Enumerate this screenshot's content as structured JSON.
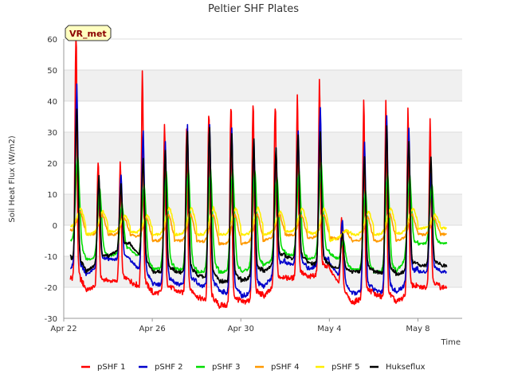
{
  "chart_data": {
    "type": "line",
    "title": "Peltier SHF Plates",
    "xlabel": "Time",
    "ylabel": "Soil Heat Flux (W/m2)",
    "xlim": [
      0,
      18
    ],
    "ylim": [
      -30,
      60
    ],
    "yticks": [
      -30,
      -20,
      -10,
      0,
      10,
      20,
      30,
      40,
      50,
      60
    ],
    "xticks": [
      {
        "day": 0,
        "label": "Apr 22"
      },
      {
        "day": 4,
        "label": "Apr 26"
      },
      {
        "day": 8,
        "label": "Apr 30"
      },
      {
        "day": 12,
        "label": "May 4"
      },
      {
        "day": 16,
        "label": "May 8"
      }
    ],
    "start_day": 0.3,
    "end_day": 17.3,
    "legend_position": "bottom",
    "annotation": "VR_met",
    "series": [
      {
        "name": "pSHF 1",
        "color": "#ff0000",
        "peak_phase": 0.55,
        "width": 0.045,
        "peaks": [
          60,
          20,
          18,
          45,
          29,
          31,
          35,
          38,
          38,
          38,
          38,
          42,
          1,
          36,
          36,
          33,
          30
        ],
        "troughs": [
          -15,
          -21,
          -18,
          -18,
          -22,
          -21,
          -23,
          -26,
          -25,
          -23,
          -17,
          -17,
          -14,
          -25,
          -22,
          -25,
          -20
        ]
      },
      {
        "name": "pSHF 2",
        "color": "#0000cc",
        "peak_phase": 0.58,
        "width": 0.06,
        "peaks": [
          42,
          13,
          15,
          28,
          24,
          29,
          29,
          29,
          25,
          22,
          28,
          35,
          1,
          24,
          32,
          28,
          15
        ],
        "troughs": [
          -12,
          -16,
          -11,
          -11,
          -19,
          -19,
          -19,
          -21,
          -23,
          -20,
          -12,
          -14,
          -12,
          -22,
          -21,
          -22,
          -15
        ]
      },
      {
        "name": "pSHF 3",
        "color": "#00dd00",
        "peak_phase": 0.62,
        "width": 0.09,
        "peaks": [
          21,
          10,
          6,
          12,
          15,
          16,
          16,
          16,
          16,
          14,
          16,
          18,
          -5,
          10,
          15,
          14,
          12
        ],
        "troughs": [
          -2,
          -11,
          -10,
          -8,
          -14,
          -14,
          -15,
          -15,
          -15,
          -13,
          -9,
          -11,
          -9,
          -14,
          -15,
          -15,
          -6
        ]
      },
      {
        "name": "pSHF 4",
        "color": "#ff9900",
        "peak_phase": 0.72,
        "width": 0.14,
        "peaks": [
          4,
          3,
          2,
          2,
          3,
          3,
          3,
          3,
          3,
          3,
          3,
          3,
          -2,
          2,
          3,
          3,
          2
        ],
        "troughs": [
          -1,
          -3,
          -3,
          -3,
          -5,
          -5,
          -5,
          -6,
          -6,
          -5,
          -3,
          -4,
          -4,
          -5,
          -5,
          -5,
          -3
        ]
      },
      {
        "name": "pSHF 5",
        "color": "#ffee00",
        "peak_phase": 0.75,
        "width": 0.16,
        "peaks": [
          5,
          4,
          3,
          3,
          5,
          5,
          5,
          5,
          5,
          4,
          5,
          5,
          -2,
          4,
          5,
          5,
          3
        ],
        "troughs": [
          1,
          -3,
          -2,
          -2,
          -3,
          -3,
          -3,
          -3,
          -3,
          -3,
          -2,
          -2,
          -5,
          -3,
          -3,
          -3,
          -1
        ]
      },
      {
        "name": "Hukseflux",
        "color": "#000000",
        "peak_phase": 0.58,
        "width": 0.06,
        "peaks": [
          35,
          14,
          12,
          20,
          22,
          28,
          29,
          27,
          25,
          23,
          27,
          28,
          -3,
          20,
          29,
          25,
          20
        ],
        "troughs": [
          -8,
          -15,
          -10,
          -6,
          -15,
          -15,
          -16,
          -18,
          -18,
          -15,
          -10,
          -12,
          -13,
          -15,
          -15,
          -16,
          -13
        ]
      }
    ]
  }
}
